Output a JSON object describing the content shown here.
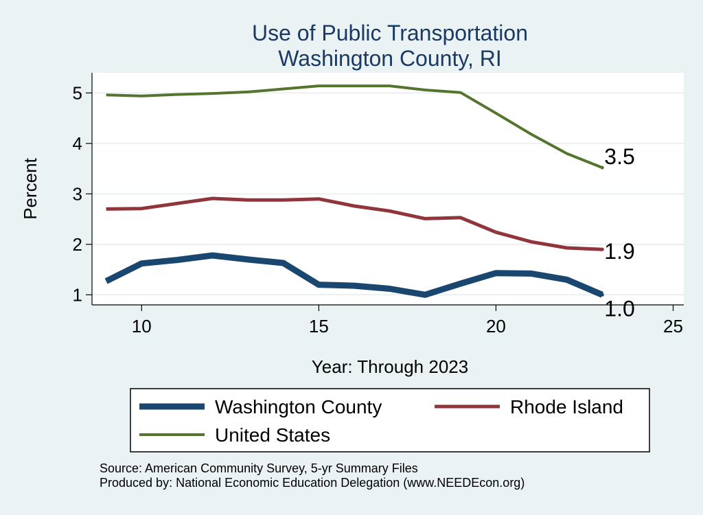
{
  "chart_data": {
    "type": "line",
    "title": "Use of Public Transportation",
    "subtitle": "Washington County, RI",
    "xlabel": "Year: Through 2023",
    "ylabel": "Percent",
    "xlim": [
      8.6,
      25.3
    ],
    "ylim": [
      0.8,
      5.4
    ],
    "x_ticks": [
      10,
      15,
      20,
      25
    ],
    "y_ticks": [
      1,
      2,
      3,
      4,
      5
    ],
    "grid": true,
    "legend_position": "bottom",
    "x": [
      9,
      10,
      11,
      12,
      13,
      14,
      15,
      16,
      17,
      18,
      19,
      20,
      21,
      22,
      23
    ],
    "series": [
      {
        "name": "Washington County",
        "color": "#1a476f",
        "values": [
          1.27,
          1.62,
          1.69,
          1.78,
          1.7,
          1.63,
          1.2,
          1.18,
          1.12,
          1.0,
          1.22,
          1.43,
          1.42,
          1.3,
          1.0
        ],
        "end_label": "1.0"
      },
      {
        "name": "Rhode Island",
        "color": "#90353b",
        "values": [
          2.7,
          2.71,
          2.81,
          2.91,
          2.88,
          2.88,
          2.9,
          2.76,
          2.66,
          2.51,
          2.53,
          2.24,
          2.05,
          1.93,
          1.9
        ],
        "end_label": "1.9"
      },
      {
        "name": "United States",
        "color": "#55752f",
        "values": [
          4.96,
          4.94,
          4.97,
          4.99,
          5.02,
          5.08,
          5.14,
          5.14,
          5.14,
          5.06,
          5.01,
          4.6,
          4.18,
          3.8,
          3.52
        ],
        "end_label": "3.5"
      }
    ]
  },
  "notes": {
    "source": "Source: American Community Survey, 5-yr Summary Files",
    "produced_by": "Produced by: National Economic Education Delegation (www.NEEDEcon.org)"
  }
}
